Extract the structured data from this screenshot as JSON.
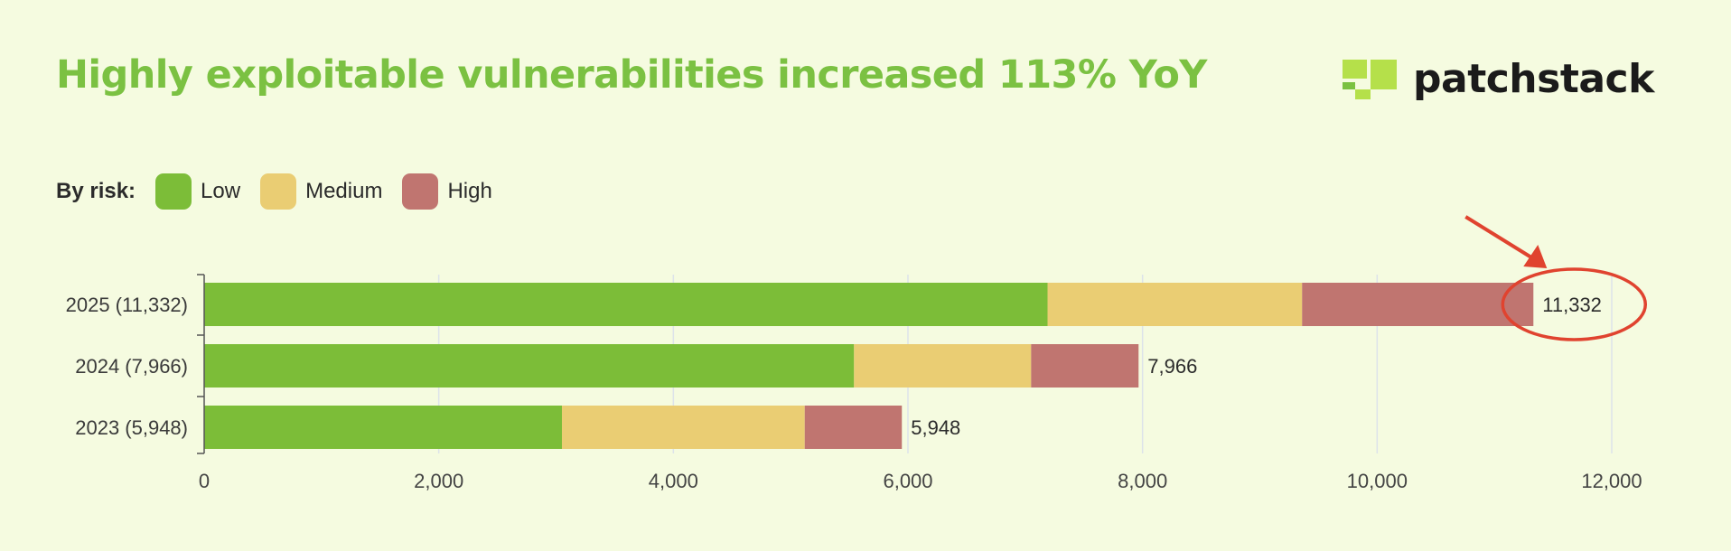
{
  "title": "Highly exploitable vulnerabilities increased 113% YoY",
  "brand": {
    "name": "patchstack",
    "colors": {
      "mark_light": "#b5e04a",
      "mark_dark": "#7bc142"
    }
  },
  "legend": {
    "label": "By risk:",
    "items": [
      {
        "name": "Low",
        "color": "#7cbd38"
      },
      {
        "name": "Medium",
        "color": "#eacd73"
      },
      {
        "name": "High",
        "color": "#c07570"
      }
    ]
  },
  "chart_data": {
    "type": "bar",
    "orientation": "horizontal",
    "stacked": true,
    "title": "Highly exploitable vulnerabilities increased 113% YoY",
    "categories": [
      "2025 (11,332)",
      "2024 (7,966)",
      "2023 (5,948)"
    ],
    "series": [
      {
        "name": "Low",
        "values": [
          7190,
          5540,
          3050
        ],
        "color": "#7cbd38"
      },
      {
        "name": "Medium",
        "values": [
          2170,
          1510,
          2070
        ],
        "color": "#eacd73"
      },
      {
        "name": "High",
        "values": [
          1972,
          916,
          828
        ],
        "color": "#c07570"
      }
    ],
    "totals": [
      11332,
      7966,
      5948
    ],
    "total_labels": [
      "11,332",
      "7,966",
      "5,948"
    ],
    "x_ticks": [
      0,
      2000,
      4000,
      6000,
      8000,
      10000,
      12000
    ],
    "x_tick_labels": [
      "0",
      "2,000",
      "4,000",
      "6,000",
      "8,000",
      "10,000",
      "12,000"
    ],
    "xlim": [
      0,
      12000
    ],
    "grid": true,
    "legend_position": "top-left",
    "annotation": {
      "type": "arrow-and-circle",
      "target": "11,332",
      "color": "#e0432f"
    }
  }
}
